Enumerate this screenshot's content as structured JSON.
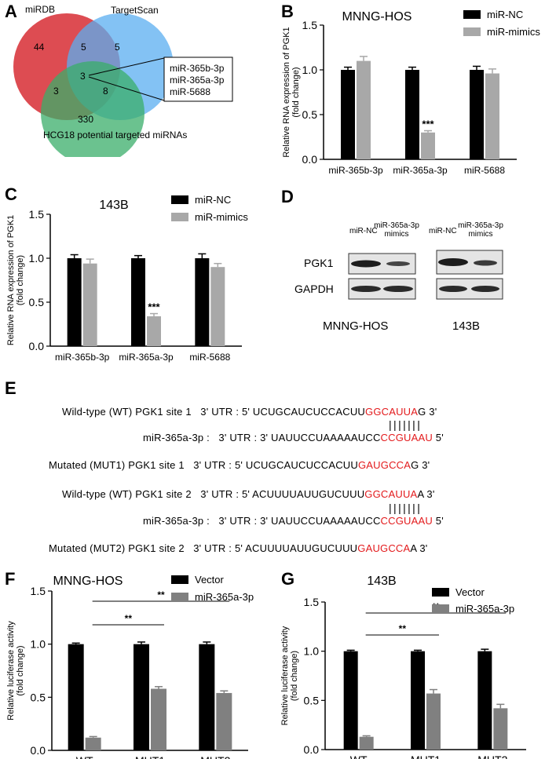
{
  "panels": {
    "A": "A",
    "B": "B",
    "C": "C",
    "D": "D",
    "E": "E",
    "F": "F",
    "G": "G"
  },
  "venn": {
    "labels": {
      "mirdb": "miRDB",
      "targetscan": "TargetScan",
      "hcg18": "HCG18 potential targeted miRNAs"
    },
    "counts": {
      "mirdb_only": "44",
      "mirdb_ts": "5",
      "ts_only": "5",
      "all_three": "3",
      "mirdb_hcg": "3",
      "ts_hcg": "8",
      "hcg_only": "330"
    },
    "callout": [
      "miR-365b-3p",
      "miR-365a-3p",
      "miR-5688"
    ],
    "colors": {
      "mirdb": "#d9383f",
      "targetscan": "#5aaef0",
      "hcg18": "#3aae6a"
    }
  },
  "western": {
    "row_labels": [
      "PGK1",
      "GAPDH"
    ],
    "col_labels": [
      "miR-NC",
      "miR-365a-3p mimics",
      "miR-NC",
      "miR-365a-3p mimics"
    ],
    "cell_lines": [
      "MNNG-HOS",
      "143B"
    ]
  },
  "sequences": {
    "wt1_name": "Wild-type (WT) PGK1 site 1",
    "wt1_utr": "3' UTR :",
    "wt1_seq_a": "5' UCUGCAUCUCCACUU",
    "wt1_seq_red": "GGCAUUA",
    "wt1_seq_b": "G 3'",
    "mir1_name": "miR-365a-3p :",
    "mir1_utr": "3' UTR :",
    "mir1_seq_a": "3' UAUUCCUAAAAAUCC",
    "mir1_seq_red": "CCGUAAU",
    "mir1_seq_b": " 5'",
    "mut1_name": "Mutated (MUT1) PGK1 site 1",
    "mut1_utr": "3' UTR :",
    "mut1_seq_a": "5' UCUGCAUCUCCACUU",
    "mut1_seq_red": "GAUGCCA",
    "mut1_seq_b": "G 3'",
    "wt2_name": "Wild-type (WT) PGK1 site 2",
    "wt2_utr": "3' UTR :",
    "wt2_seq_a": "5' ACUUUUAUUGUCUUU",
    "wt2_seq_red": "GGCAUUA",
    "wt2_seq_b": "A 3'",
    "mir2_name": "miR-365a-3p :",
    "mir2_utr": "3' UTR :",
    "mir2_seq_a": "3' UAUUCCUAAAAAUCC",
    "mir2_seq_red": "CCGUAAU",
    "mir2_seq_b": " 5'",
    "mut2_name": "Mutated (MUT2) PGK1 site 2",
    "mut2_utr": "3' UTR :",
    "mut2_seq_a": "5' ACUUUUAUUGUCUUU",
    "mut2_seq_red": "GAUGCCA",
    "mut2_seq_b": "A 3'",
    "bonds": "|||||||"
  },
  "colors": {
    "black": "#000000",
    "gray": "#a8a8a8",
    "dgray": "#808080",
    "red": "#e31a1c"
  },
  "chart_data": [
    {
      "id": "B",
      "type": "bar",
      "title": "MNNG-HOS",
      "ylabel": "Relative RNA expression of PGK1 (fold change)",
      "xlabel": "",
      "ylim": [
        0,
        1.5
      ],
      "yticks": [
        "0.0",
        "0.5",
        "1.0",
        "1.5"
      ],
      "categories": [
        "miR-365b-3p",
        "miR-365a-3p",
        "miR-5688"
      ],
      "series": [
        {
          "name": "miR-NC",
          "values": [
            1.0,
            1.0,
            1.0
          ],
          "errors": [
            0.03,
            0.03,
            0.04
          ],
          "color": "#000000"
        },
        {
          "name": "miR-mimics",
          "values": [
            1.1,
            0.3,
            0.96
          ],
          "errors": [
            0.05,
            0.02,
            0.05
          ],
          "color": "#a8a8a8"
        }
      ],
      "annotations": [
        {
          "text": "***",
          "category": 1,
          "series": 1
        }
      ],
      "legend": "top-right"
    },
    {
      "id": "C",
      "type": "bar",
      "title": "143B",
      "ylabel": "Relative RNA expression of PGK1 (fold change)",
      "xlabel": "",
      "ylim": [
        0,
        1.5
      ],
      "yticks": [
        "0.0",
        "0.5",
        "1.0",
        "1.5"
      ],
      "categories": [
        "miR-365b-3p",
        "miR-365a-3p",
        "miR-5688"
      ],
      "series": [
        {
          "name": "miR-NC",
          "values": [
            1.0,
            1.0,
            1.0
          ],
          "errors": [
            0.04,
            0.03,
            0.05
          ],
          "color": "#000000"
        },
        {
          "name": "miR-mimics",
          "values": [
            0.94,
            0.34,
            0.9
          ],
          "errors": [
            0.05,
            0.03,
            0.04
          ],
          "color": "#a8a8a8"
        }
      ],
      "annotations": [
        {
          "text": "***",
          "category": 1,
          "series": 1
        }
      ],
      "legend": "top-right"
    },
    {
      "id": "F",
      "type": "bar",
      "title": "MNNG-HOS",
      "ylabel": "Relative luciferase activity (fold change)",
      "xlabel": "",
      "ylim": [
        0,
        1.5
      ],
      "yticks": [
        "0.0",
        "0.5",
        "1.0",
        "1.5"
      ],
      "categories": [
        "WT",
        "MUT1",
        "MUT2"
      ],
      "series": [
        {
          "name": "Vector",
          "values": [
            1.0,
            1.0,
            1.0
          ],
          "errors": [
            0.01,
            0.02,
            0.02
          ],
          "color": "#000000"
        },
        {
          "name": "miR-365a-3p",
          "values": [
            0.12,
            0.58,
            0.54
          ],
          "errors": [
            0.01,
            0.02,
            0.02
          ],
          "color": "#808080"
        }
      ],
      "significance": [
        {
          "text": "**",
          "from": "WT",
          "to": "MUT1"
        },
        {
          "text": "**",
          "from": "WT",
          "to": "MUT2"
        }
      ],
      "legend": "top-right"
    },
    {
      "id": "G",
      "type": "bar",
      "title": "143B",
      "ylabel": "Relative luciferase activity (fold change)",
      "xlabel": "",
      "ylim": [
        0,
        1.5
      ],
      "yticks": [
        "0.0",
        "0.5",
        "1.0",
        "1.5"
      ],
      "categories": [
        "WT",
        "MUT1",
        "MUT2"
      ],
      "series": [
        {
          "name": "Vector",
          "values": [
            1.0,
            1.0,
            1.0
          ],
          "errors": [
            0.01,
            0.01,
            0.02
          ],
          "color": "#000000"
        },
        {
          "name": "miR-365a-3p",
          "values": [
            0.13,
            0.57,
            0.42
          ],
          "errors": [
            0.01,
            0.04,
            0.04
          ],
          "color": "#808080"
        }
      ],
      "significance": [
        {
          "text": "**",
          "from": "WT",
          "to": "MUT1"
        },
        {
          "text": "**",
          "from": "WT",
          "to": "MUT2"
        }
      ],
      "legend": "top-right"
    }
  ]
}
